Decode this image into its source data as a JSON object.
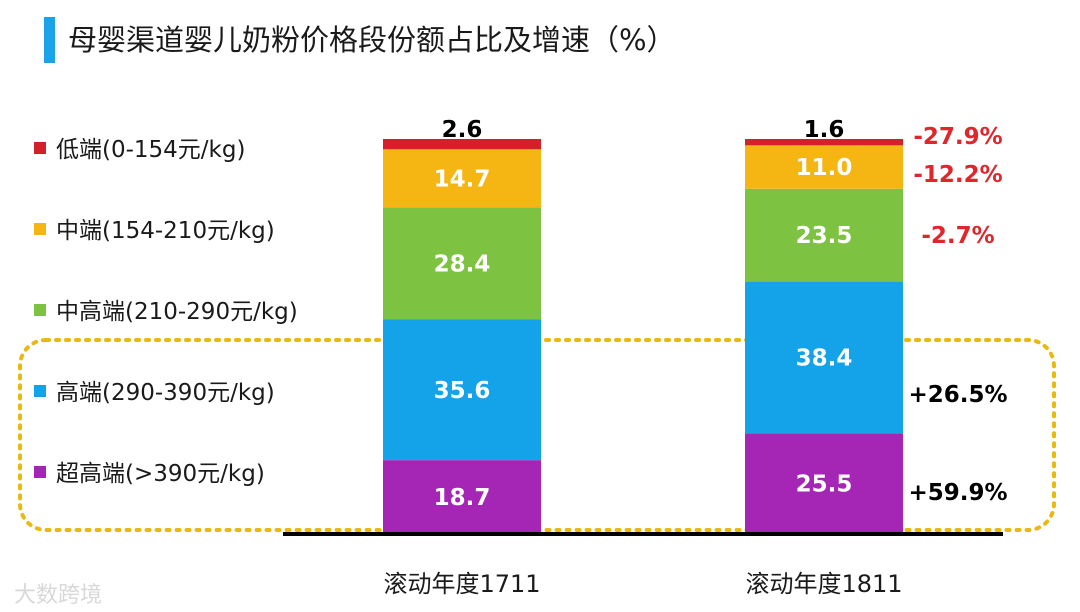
{
  "title": "母婴渠道婴儿奶粉价格段份额占比及增速（%）",
  "watermark": "大数跨境",
  "colors": {
    "title_bar": "#1aa3e8",
    "highlight_box": "#e8b90f",
    "axis": "#000000"
  },
  "chart_data": {
    "type": "bar",
    "stacked": true,
    "title": "母婴渠道婴儿奶粉价格段份额占比及增速（%）",
    "categories": [
      "滚动年度1711",
      "滚动年度1811"
    ],
    "series": [
      {
        "name": "低端(0-154元/kg)",
        "color": "#d4202a",
        "values": [
          2.6,
          1.6
        ],
        "growth": "-27.9%"
      },
      {
        "name": "中端(154-210元/kg)",
        "color": "#f5b512",
        "values": [
          14.7,
          11.0
        ],
        "growth": "-12.2%"
      },
      {
        "name": "中高端(210-290元/kg)",
        "color": "#7ec242",
        "values": [
          28.4,
          23.5
        ],
        "growth": "-2.7%"
      },
      {
        "name": "高端(290-390元/kg)",
        "color": "#14a3e8",
        "values": [
          35.6,
          38.4
        ],
        "growth": "+26.5%"
      },
      {
        "name": "超高端(>390元/kg)",
        "color": "#a526b4",
        "values": [
          18.7,
          25.5
        ],
        "growth": "+59.9%"
      }
    ],
    "highlighted_series": [
      "高端(290-390元/kg)",
      "超高端(>390元/kg)"
    ],
    "legend_position": "left",
    "ylim": [
      0,
      100
    ]
  }
}
